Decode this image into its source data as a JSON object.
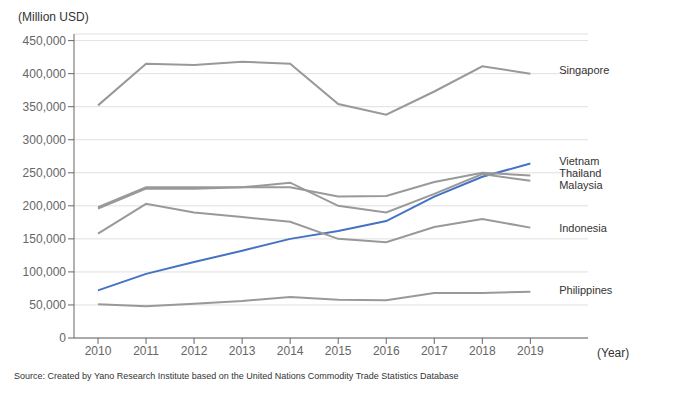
{
  "chart_data": {
    "type": "line",
    "x": [
      2010,
      2011,
      2012,
      2013,
      2014,
      2015,
      2016,
      2017,
      2018,
      2019
    ],
    "xlim": [
      2009.5,
      2020.2
    ],
    "xticks": [
      2010,
      2011,
      2012,
      2013,
      2014,
      2015,
      2016,
      2017,
      2018,
      2019
    ],
    "xlabel": "(Year)",
    "ylabel": "(Million USD)",
    "ylim": [
      0,
      460000
    ],
    "yticks": [
      0,
      {
        "value": 50000,
        "label": "50,000"
      },
      {
        "value": 100000,
        "label": "100,000"
      },
      {
        "value": 150000,
        "label": "150,000"
      },
      {
        "value": 200000,
        "label": "200,000"
      },
      {
        "value": 250000,
        "label": "250,000"
      },
      {
        "value": 300000,
        "label": "300,000"
      },
      {
        "value": 350000,
        "label": "350,000"
      },
      {
        "value": 400000,
        "label": "400,000"
      },
      {
        "value": 450000,
        "label": "450,000"
      }
    ],
    "grid": true,
    "series": [
      {
        "name": "Singapore",
        "color": "#999999",
        "values": [
          352000,
          415000,
          413000,
          418000,
          415000,
          354000,
          338000,
          373000,
          411000,
          400000
        ]
      },
      {
        "name": "Vietnam",
        "color": "#4472C4",
        "values": [
          72000,
          97000,
          115000,
          132000,
          150000,
          162000,
          177000,
          214000,
          244000,
          264000
        ]
      },
      {
        "name": "Thailand",
        "color": "#999999",
        "values": [
          196000,
          226000,
          226000,
          228000,
          228000,
          214000,
          215000,
          236000,
          250000,
          246000
        ]
      },
      {
        "name": "Malaysia",
        "color": "#999999",
        "values": [
          198000,
          228000,
          228000,
          228000,
          235000,
          200000,
          190000,
          218000,
          248000,
          238000
        ]
      },
      {
        "name": "Indonesia",
        "color": "#999999",
        "values": [
          158000,
          203000,
          190000,
          183000,
          176000,
          150000,
          145000,
          168000,
          180000,
          167000
        ]
      },
      {
        "name": "Philippines",
        "color": "#999999",
        "values": [
          51000,
          48000,
          52000,
          56000,
          62000,
          58000,
          57000,
          68000,
          68000,
          70000
        ]
      }
    ],
    "annotations": [
      {
        "text": "Singapore",
        "x": 2019.6,
        "y": 405000
      },
      {
        "text": "Vietnam",
        "x": 2019.6,
        "y": 268000
      },
      {
        "text": "Thailand",
        "x": 2019.6,
        "y": 249000
      },
      {
        "text": "Malaysia",
        "x": 2019.6,
        "y": 238000
      },
      {
        "text": "Indonesia",
        "x": 2019.6,
        "y": 167000
      },
      {
        "text": "Philippines",
        "x": 2019.6,
        "y": 72000
      }
    ],
    "source": "Source: Created by Yano Research Institute based on the United Nations Commodity Trade Statistics Database"
  }
}
